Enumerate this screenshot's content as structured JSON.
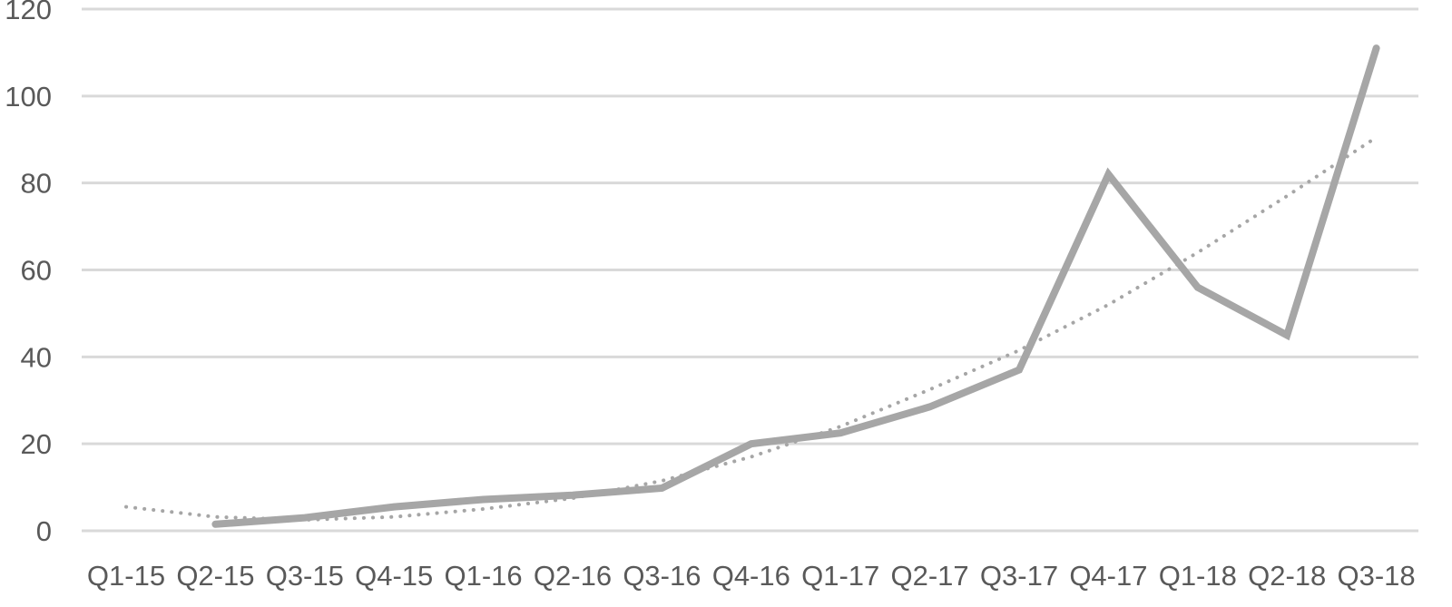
{
  "chart_data": {
    "type": "line",
    "title": "",
    "xlabel": "",
    "ylabel": "",
    "categories": [
      "Q1-15",
      "Q2-15",
      "Q3-15",
      "Q4-15",
      "Q1-16",
      "Q2-16",
      "Q3-16",
      "Q4-16",
      "Q1-17",
      "Q2-17",
      "Q3-17",
      "Q4-17",
      "Q1-18",
      "Q2-18",
      "Q3-18"
    ],
    "ylim": [
      0,
      120
    ],
    "yticks": [
      0,
      20,
      40,
      60,
      80,
      100,
      120
    ],
    "grid": "horizontal",
    "legend": "none",
    "series": [
      {
        "values": [
          null,
          1.5,
          3,
          5.5,
          7.2,
          8.2,
          9.8,
          20,
          22.5,
          28.5,
          37,
          82,
          56,
          45,
          111
        ],
        "style": "solid",
        "color": "#A6A6A6"
      },
      {
        "trendline": true,
        "values": [
          5.5,
          3.2,
          2.5,
          3.2,
          5,
          7.5,
          11.5,
          17,
          24,
          32.5,
          41.5,
          52,
          64,
          77,
          90.5
        ],
        "style": "dotted",
        "color": "#A6A6A6"
      }
    ],
    "colors": {
      "gridline": "#D9D9D9",
      "tick_label": "#595959"
    }
  }
}
